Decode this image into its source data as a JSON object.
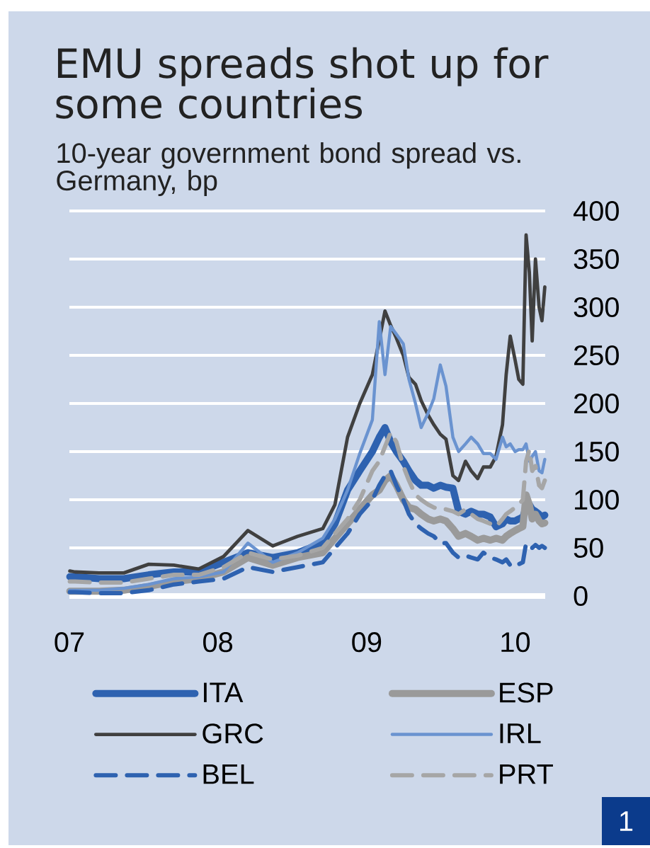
{
  "chart_data": {
    "type": "line",
    "title": "EMU spreads shot up for some countries",
    "subtitle": "10-year government bond spread vs. Germany, bp",
    "x": [
      "2007-01-02",
      "2007-01-15",
      "2007-03-15",
      "2007-05-15",
      "2007-07-15",
      "2007-09-15",
      "2007-11-15",
      "2008-01-15",
      "2008-03-15",
      "2008-05-15",
      "2008-07-15",
      "2008-09-15",
      "2008-10-15",
      "2008-11-15",
      "2008-12-15",
      "2009-01-15",
      "2009-02-01",
      "2009-02-15",
      "2009-03-01",
      "2009-03-15",
      "2009-04-01",
      "2009-04-15",
      "2009-05-01",
      "2009-05-15",
      "2009-06-01",
      "2009-06-15",
      "2009-07-01",
      "2009-07-15",
      "2009-08-01",
      "2009-08-15",
      "2009-09-01",
      "2009-09-15",
      "2009-10-01",
      "2009-10-15",
      "2009-11-01",
      "2009-11-15",
      "2009-12-01",
      "2009-12-10",
      "2009-12-20",
      "2010-01-01",
      "2010-01-10",
      "2010-01-20",
      "2010-01-28",
      "2010-02-05",
      "2010-02-12",
      "2010-02-20",
      "2010-03-01",
      "2010-03-08",
      "2010-03-15"
    ],
    "series": [
      {
        "name": "ITA",
        "color": "#2e62b0",
        "line_style": "solid",
        "values": [
          20,
          20,
          18,
          18,
          22,
          25,
          25,
          35,
          45,
          40,
          45,
          55,
          75,
          110,
          130,
          150,
          165,
          175,
          160,
          150,
          140,
          130,
          120,
          115,
          115,
          112,
          115,
          113,
          112,
          88,
          85,
          88,
          85,
          85,
          82,
          72,
          75,
          80,
          78,
          78,
          80,
          82,
          92,
          95,
          90,
          88,
          85,
          82,
          84
        ]
      },
      {
        "name": "ESP",
        "color": "#9a9a9a",
        "line_style": "solid",
        "values": [
          5,
          5,
          5,
          6,
          10,
          15,
          18,
          25,
          40,
          32,
          40,
          45,
          60,
          75,
          90,
          105,
          110,
          120,
          125,
          115,
          100,
          92,
          90,
          85,
          80,
          78,
          80,
          78,
          70,
          62,
          65,
          62,
          58,
          60,
          58,
          60,
          58,
          62,
          65,
          68,
          70,
          72,
          105,
          95,
          80,
          85,
          78,
          75,
          76
        ]
      },
      {
        "name": "GRC",
        "color": "#404040",
        "line_style": "solid",
        "values": [
          26,
          25,
          24,
          24,
          33,
          32,
          28,
          41,
          68,
          52,
          62,
          70,
          95,
          165,
          200,
          230,
          266,
          296,
          281,
          268,
          250,
          227,
          220,
          203,
          188,
          178,
          168,
          163,
          125,
          120,
          140,
          130,
          122,
          134,
          134,
          145,
          178,
          230,
          270,
          245,
          225,
          220,
          375,
          336,
          265,
          350,
          300,
          286,
          321
        ]
      },
      {
        "name": "IRL",
        "color": "#6a93d0",
        "line_style": "solid",
        "values": [
          6,
          6,
          6,
          8,
          12,
          18,
          20,
          25,
          55,
          35,
          45,
          60,
          80,
          110,
          148,
          183,
          285,
          230,
          280,
          272,
          262,
          225,
          200,
          175,
          190,
          205,
          240,
          218,
          165,
          150,
          158,
          165,
          158,
          148,
          148,
          142,
          165,
          155,
          158,
          150,
          152,
          152,
          158,
          140,
          145,
          150,
          130,
          128,
          142
        ]
      },
      {
        "name": "BEL",
        "color": "#2e62b0",
        "line_style": "dashed",
        "values": [
          4,
          4,
          3,
          3,
          6,
          12,
          15,
          18,
          30,
          25,
          30,
          35,
          50,
          65,
          85,
          100,
          115,
          125,
          130,
          115,
          100,
          85,
          75,
          70,
          65,
          62,
          55,
          55,
          45,
          40,
          42,
          40,
          38,
          45,
          40,
          38,
          35,
          38,
          32,
          30,
          33,
          35,
          55,
          52,
          50,
          53,
          50,
          52,
          50
        ]
      },
      {
        "name": "PRT",
        "color": "#a6a6a6",
        "line_style": "dashed",
        "values": [
          15,
          15,
          14,
          14,
          18,
          22,
          22,
          30,
          45,
          38,
          42,
          50,
          65,
          80,
          100,
          130,
          140,
          155,
          170,
          160,
          135,
          120,
          105,
          100,
          95,
          92,
          90,
          90,
          88,
          85,
          90,
          85,
          80,
          78,
          75,
          72,
          80,
          85,
          88,
          92,
          95,
          100,
          140,
          152,
          130,
          135,
          115,
          112,
          120
        ]
      }
    ],
    "xlim": [
      "2007-01-01",
      "2010-03-16"
    ],
    "xticks": [
      {
        "value": "2007-01-01",
        "label": "07"
      },
      {
        "value": "2008-01-01",
        "label": "08"
      },
      {
        "value": "2009-01-01",
        "label": "09"
      },
      {
        "value": "2010-01-01",
        "label": "10"
      }
    ],
    "ylim": [
      0,
      400
    ],
    "yticks": [
      0,
      50,
      100,
      150,
      200,
      250,
      300,
      350,
      400
    ],
    "grid": "y",
    "legend": "bottom",
    "marker": "none",
    "annotations": [
      "1"
    ]
  }
}
